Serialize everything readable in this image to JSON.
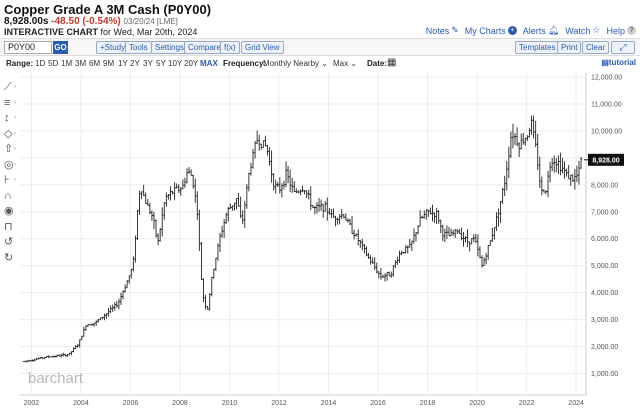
{
  "header": {
    "title": "Copper Grade A 3M Cash (P0Y00)",
    "price": "8,928.00s",
    "change": "-48.50 (-0.54%)",
    "timestamp": "03/20/24 [LME]",
    "sub_bold": "INTERACTIVE CHART",
    "sub_rest": " for Wed, Mar 20th, 2024"
  },
  "toplinks": {
    "notes": "Notes",
    "my_charts": "My Charts",
    "alerts": "Alerts",
    "watch": "Watch",
    "help": "Help"
  },
  "toolbar": {
    "symbol": "P0Y00",
    "go": "GO",
    "study": "+Study",
    "tools": "Tools",
    "settings": "Settings",
    "compare": "Compare",
    "fx": "f(x)",
    "grid_view": "Grid View",
    "templates": "Templates",
    "print": "Print",
    "clear": "Clear"
  },
  "rangebar": {
    "range_label": "Range:",
    "ranges": [
      "1D",
      "5D",
      "1M",
      "3M",
      "6M",
      "9M",
      "1Y",
      "2Y",
      "3Y",
      "5Y",
      "10Y",
      "20Y",
      "MAX"
    ],
    "selected": "MAX",
    "frequency_label": "Frequency:",
    "frequency_value": "Monthly Nearby",
    "period_value": "Max",
    "date_label": "Date:",
    "tutorial": "tutorial"
  },
  "left_tools": [
    "line-tool-icon",
    "horizontal-line-icon",
    "arrow-tool-icon",
    "shape-tool-icon",
    "pointer-icon",
    "circle-tool-icon",
    "fibonacci-icon",
    "magnet-icon",
    "eye-icon",
    "lock-icon",
    "undo-icon",
    "redo-icon"
  ],
  "chart_data": {
    "type": "ohlc-bar",
    "watermark": "barchart",
    "last_price_label": "8,928.00",
    "y_ticks": [
      1000,
      2000,
      3000,
      4000,
      5000,
      6000,
      7000,
      8000,
      9000,
      10000,
      11000,
      12000
    ],
    "y_tick_labels": [
      "1,000.00",
      "2,000.00",
      "3,000.00",
      "4,000.00",
      "5,000.00",
      "6,000.00",
      "7,000.00",
      "8,000.00",
      "9,000.00",
      "10,000.00",
      "11,000.00",
      "12,000.00"
    ],
    "ylim": [
      500,
      12000
    ],
    "x_tick_labels": [
      "2002",
      "2004",
      "2006",
      "2008",
      "2010",
      "2012",
      "2014",
      "2016",
      "2018",
      "2020",
      "2022",
      "2024"
    ],
    "x_start_year": 2001.7,
    "x_end_year": 2024.4,
    "anchors": [
      [
        2001.7,
        1450
      ],
      [
        2002.0,
        1500
      ],
      [
        2002.5,
        1600
      ],
      [
        2003.0,
        1650
      ],
      [
        2003.5,
        1700
      ],
      [
        2003.9,
        2100
      ],
      [
        2004.2,
        2800
      ],
      [
        2004.6,
        2900
      ],
      [
        2005.0,
        3200
      ],
      [
        2005.5,
        3600
      ],
      [
        2005.9,
        4500
      ],
      [
        2006.1,
        5000
      ],
      [
        2006.3,
        7200
      ],
      [
        2006.4,
        8000
      ],
      [
        2006.6,
        7400
      ],
      [
        2006.9,
        6800
      ],
      [
        2007.1,
        5800
      ],
      [
        2007.4,
        7500
      ],
      [
        2007.8,
        7800
      ],
      [
        2008.1,
        7900
      ],
      [
        2008.3,
        8500
      ],
      [
        2008.5,
        8300
      ],
      [
        2008.7,
        7000
      ],
      [
        2008.9,
        4000
      ],
      [
        2009.1,
        3300
      ],
      [
        2009.3,
        4600
      ],
      [
        2009.6,
        6000
      ],
      [
        2009.9,
        7000
      ],
      [
        2010.3,
        7500
      ],
      [
        2010.5,
        6500
      ],
      [
        2010.8,
        8500
      ],
      [
        2011.1,
        9700
      ],
      [
        2011.5,
        9400
      ],
      [
        2011.8,
        8000
      ],
      [
        2012.0,
        7800
      ],
      [
        2012.3,
        8400
      ],
      [
        2012.6,
        7700
      ],
      [
        2013.0,
        7900
      ],
      [
        2013.4,
        7100
      ],
      [
        2013.8,
        7200
      ],
      [
        2014.2,
        6800
      ],
      [
        2014.6,
        6900
      ],
      [
        2014.9,
        6400
      ],
      [
        2015.3,
        5800
      ],
      [
        2015.6,
        5300
      ],
      [
        2015.9,
        4900
      ],
      [
        2016.1,
        4600
      ],
      [
        2016.5,
        4700
      ],
      [
        2016.9,
        5500
      ],
      [
        2017.3,
        5700
      ],
      [
        2017.7,
        6700
      ],
      [
        2018.0,
        7000
      ],
      [
        2018.4,
        6900
      ],
      [
        2018.6,
        6200
      ],
      [
        2018.9,
        6100
      ],
      [
        2019.2,
        6300
      ],
      [
        2019.6,
        5900
      ],
      [
        2019.9,
        6000
      ],
      [
        2020.2,
        5000
      ],
      [
        2020.5,
        5800
      ],
      [
        2020.8,
        6800
      ],
      [
        2021.1,
        8000
      ],
      [
        2021.4,
        10000
      ],
      [
        2021.7,
        9500
      ],
      [
        2022.0,
        9800
      ],
      [
        2022.2,
        10300
      ],
      [
        2022.4,
        9200
      ],
      [
        2022.6,
        7700
      ],
      [
        2022.8,
        7900
      ],
      [
        2023.0,
        9000
      ],
      [
        2023.3,
        8800
      ],
      [
        2023.6,
        8400
      ],
      [
        2023.9,
        8200
      ],
      [
        2024.1,
        8400
      ],
      [
        2024.2,
        8928
      ]
    ]
  }
}
